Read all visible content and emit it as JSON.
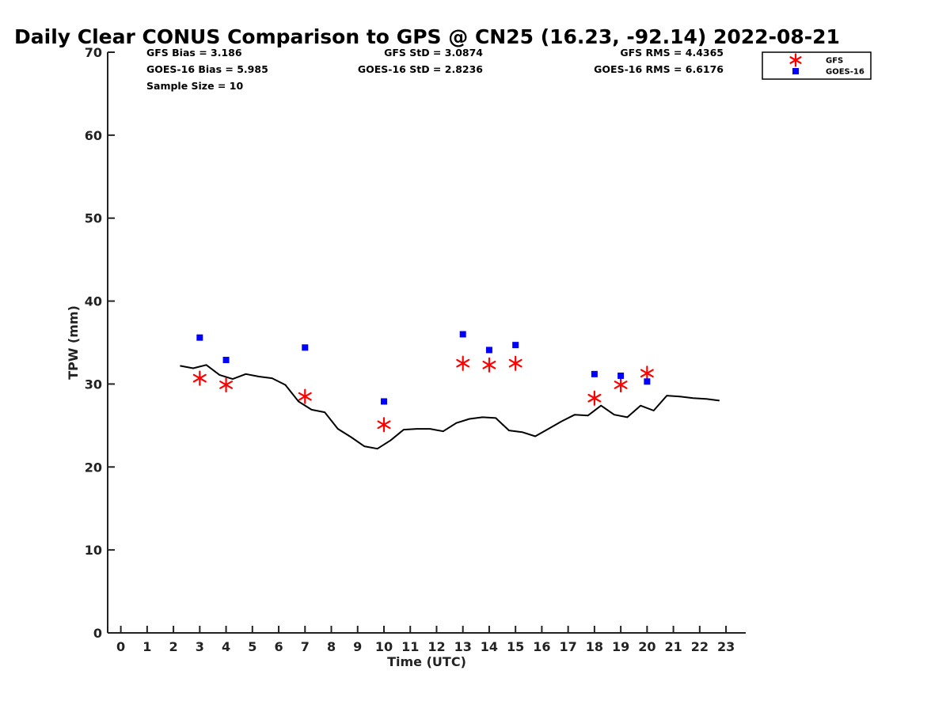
{
  "chart_data": {
    "type": "scatter",
    "title": "Daily Clear CONUS Comparison to GPS @ CN25 (16.23, -92.14) 2022-08-21",
    "xlabel": "Time (UTC)",
    "ylabel": "TPW (mm)",
    "xlim": [
      -0.5,
      23.75
    ],
    "ylim": [
      0,
      70
    ],
    "x_ticks": [
      0,
      1,
      2,
      3,
      4,
      5,
      6,
      7,
      8,
      9,
      10,
      11,
      12,
      13,
      14,
      15,
      16,
      17,
      18,
      19,
      20,
      21,
      22,
      23
    ],
    "y_ticks": [
      0,
      10,
      20,
      30,
      40,
      50,
      60,
      70
    ],
    "grid": false,
    "legend": {
      "placement": "top-right",
      "entries": [
        {
          "label": "GFS",
          "marker": "asterisk",
          "color": "#ff0000"
        },
        {
          "label": "GOES-16",
          "marker": "square",
          "color": "#0000ff"
        }
      ]
    },
    "stats": [
      {
        "text": "GFS Bias = 3.186",
        "anchor": "start",
        "col": 0,
        "row": 0
      },
      {
        "text": "GOES-16 Bias = 5.985",
        "anchor": "start",
        "col": 0,
        "row": 1
      },
      {
        "text": "Sample Size = 10",
        "anchor": "start",
        "col": 0,
        "row": 2
      },
      {
        "text": "GFS StD = 3.0874",
        "anchor": "end",
        "col": 1,
        "row": 0
      },
      {
        "text": "GOES-16 StD = 2.8236",
        "anchor": "end",
        "col": 1,
        "row": 1
      },
      {
        "text": "GFS RMS = 4.4365",
        "anchor": "end",
        "col": 2,
        "row": 0
      },
      {
        "text": "GOES-16 RMS = 6.6176",
        "anchor": "end",
        "col": 2,
        "row": 1
      }
    ],
    "series": [
      {
        "type": "line",
        "color": "#000000",
        "x": [
          2.25,
          2.75,
          3.25,
          3.75,
          4.25,
          4.75,
          5.25,
          5.75,
          6.25,
          6.75,
          7.25,
          7.75,
          8.25,
          8.75,
          9.25,
          9.75,
          10.25,
          10.75,
          11.25,
          11.75,
          12.25,
          12.75,
          13.25,
          13.75,
          14.25,
          14.75,
          15.25,
          15.75,
          16.25,
          16.75,
          17.25,
          17.75,
          18.25,
          18.75,
          19.25,
          19.75,
          20.25,
          20.75,
          21.25,
          21.75,
          22.25,
          22.75
        ],
        "y": [
          32.2,
          31.9,
          32.3,
          31.1,
          30.6,
          31.2,
          30.9,
          30.7,
          29.9,
          27.9,
          26.9,
          26.6,
          24.6,
          23.6,
          22.5,
          22.2,
          23.2,
          24.5,
          24.6,
          24.6,
          24.3,
          25.3,
          25.8,
          26.0,
          25.9,
          24.4,
          24.2,
          23.7,
          24.6,
          25.5,
          26.3,
          26.2,
          27.4,
          26.3,
          26.0,
          27.4,
          26.8,
          28.6,
          28.5,
          28.3,
          28.2,
          28.0
        ]
      },
      {
        "name": "GFS",
        "type": "scatter",
        "marker": "asterisk",
        "color": "#ff0000",
        "x": [
          3,
          4,
          7,
          10,
          13,
          14,
          15,
          18,
          19,
          20
        ],
        "y": [
          30.7,
          29.9,
          28.5,
          25.1,
          32.5,
          32.3,
          32.5,
          28.3,
          29.9,
          31.3
        ]
      },
      {
        "name": "GOES-16",
        "type": "scatter",
        "marker": "square",
        "color": "#0000ff",
        "x": [
          3,
          4,
          7,
          10,
          13,
          14,
          15,
          18,
          19,
          20
        ],
        "y": [
          35.6,
          32.9,
          34.4,
          27.9,
          36.0,
          34.1,
          34.7,
          31.2,
          31.0,
          30.3
        ]
      }
    ]
  }
}
